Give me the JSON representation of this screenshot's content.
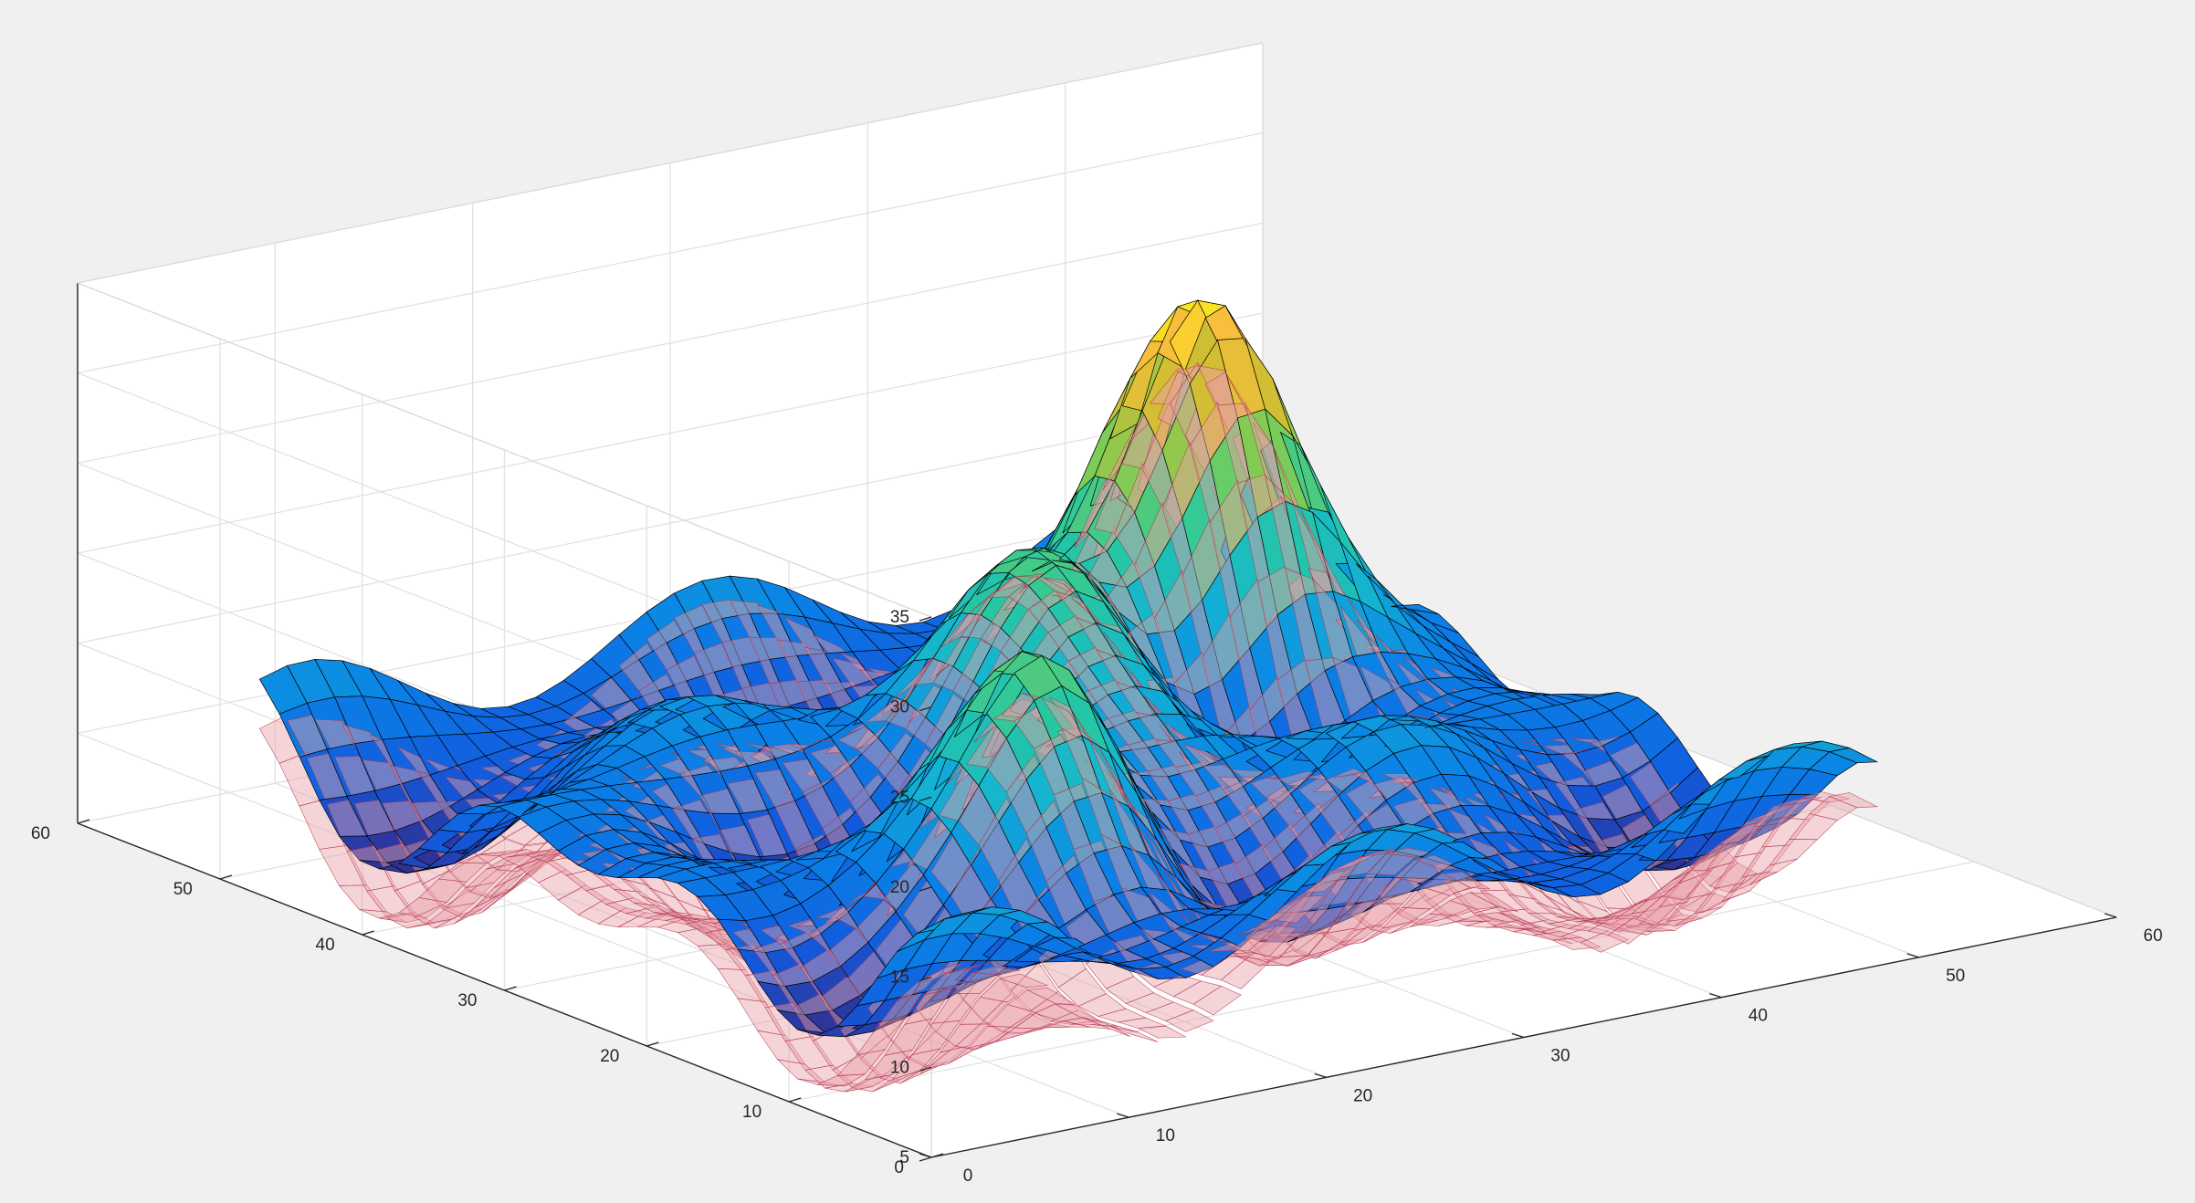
{
  "window": {
    "background": "#f0f0f0"
  },
  "chart_data": {
    "type": "surface3d",
    "title": "",
    "xlabel": "",
    "ylabel": "",
    "zlabel": "",
    "xlim": [
      0,
      60
    ],
    "ylim": [
      0,
      60
    ],
    "zlim": [
      5,
      35
    ],
    "xticks": [
      "0",
      "10",
      "20",
      "30",
      "40",
      "50",
      "60"
    ],
    "yticks": [
      "0",
      "10",
      "20",
      "30",
      "40",
      "50",
      "60"
    ],
    "zticks": [
      "5",
      "10",
      "15",
      "20",
      "25",
      "30",
      "35"
    ],
    "grid": true,
    "colormap": "parula",
    "surfaces": [
      {
        "style": "faceted colormapped surface with black edges",
        "edge_color": "#000000",
        "x_range": [
          1,
          49
        ],
        "y_range": [
          1,
          49
        ],
        "z_min": 7,
        "z_max": 33,
        "peaks": [
          {
            "x": 38,
            "y": 33,
            "z": 33
          },
          {
            "x": 27,
            "y": 28,
            "z": 25.5
          },
          {
            "x": 17,
            "y": 15,
            "z": 24
          }
        ]
      },
      {
        "style": "translucent mesh",
        "face_color": "#e8a0a8",
        "edge_color": "#b0304a",
        "opacity": 0.45,
        "offset_below_first": 2.5,
        "x_range": [
          1,
          49
        ],
        "y_range": [
          1,
          49
        ]
      }
    ]
  }
}
